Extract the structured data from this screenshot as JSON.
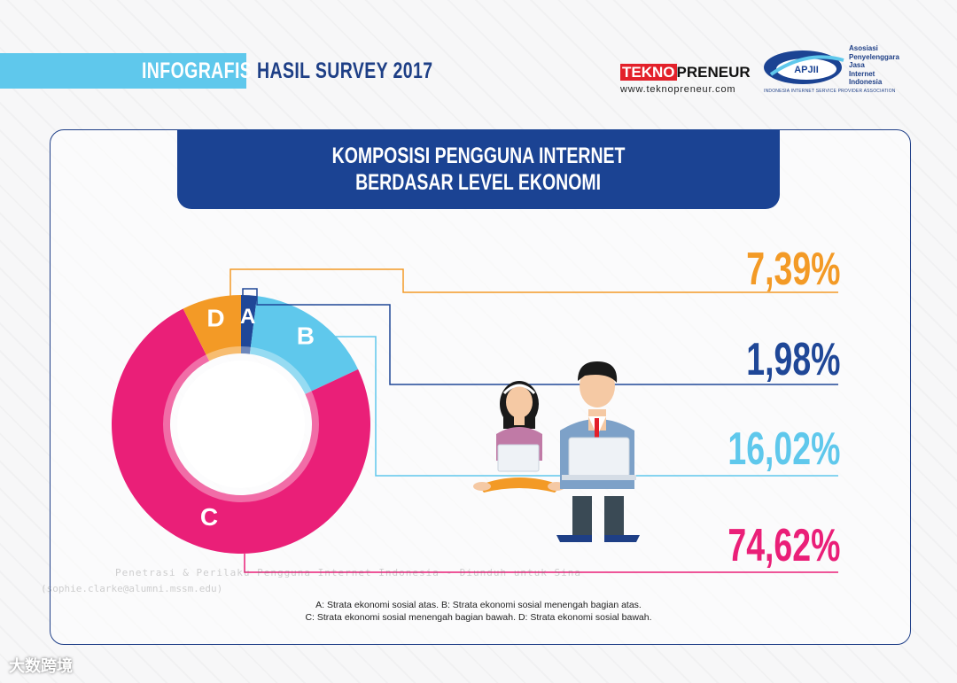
{
  "header": {
    "tag": "INFOGRAFIS",
    "title": "HASIL SURVEY 2017",
    "brand_red": "TEKNO",
    "brand_black": "PRENEUR",
    "brand_url": "www.teknopreneur.com",
    "apjii_badge": "APJII",
    "apjii_lines": [
      "Asosiasi",
      "Penyelenggara",
      "Jasa",
      "Internet",
      "Indonesia"
    ],
    "apjii_tagline": "INDONESIA INTERNET SERVICE PROVIDER ASSOCIATION"
  },
  "panel": {
    "title_line1": "KOMPOSISI PENGGUNA INTERNET",
    "title_line2": "BERDASAR LEVEL EKONOMI"
  },
  "chart_data": {
    "type": "pie",
    "labels": [
      "A",
      "B",
      "C",
      "D"
    ],
    "values": [
      1.98,
      16.02,
      74.62,
      7.39
    ],
    "value_labels": [
      "1,98%",
      "16,02%",
      "74,62%",
      "7,39%"
    ],
    "colors": [
      "#1f4797",
      "#5fc8ec",
      "#ea1f78",
      "#f39a26"
    ]
  },
  "legend": {
    "line1": "A: Strata ekonomi sosial atas. B: Strata ekonomi sosial menengah bagian atas.",
    "line2": "C: Strata ekonomi sosial menengah bagian bawah. D: Strata ekonomi sosial bawah."
  },
  "watermark": {
    "line1": "Penetrasi & Perilaku Pengguna Internet Indonesia - Diunduh untuk Sina",
    "line2": "(sophie.clarke@alumni.mssm.edu)"
  },
  "corner_mark": "大数跨境"
}
